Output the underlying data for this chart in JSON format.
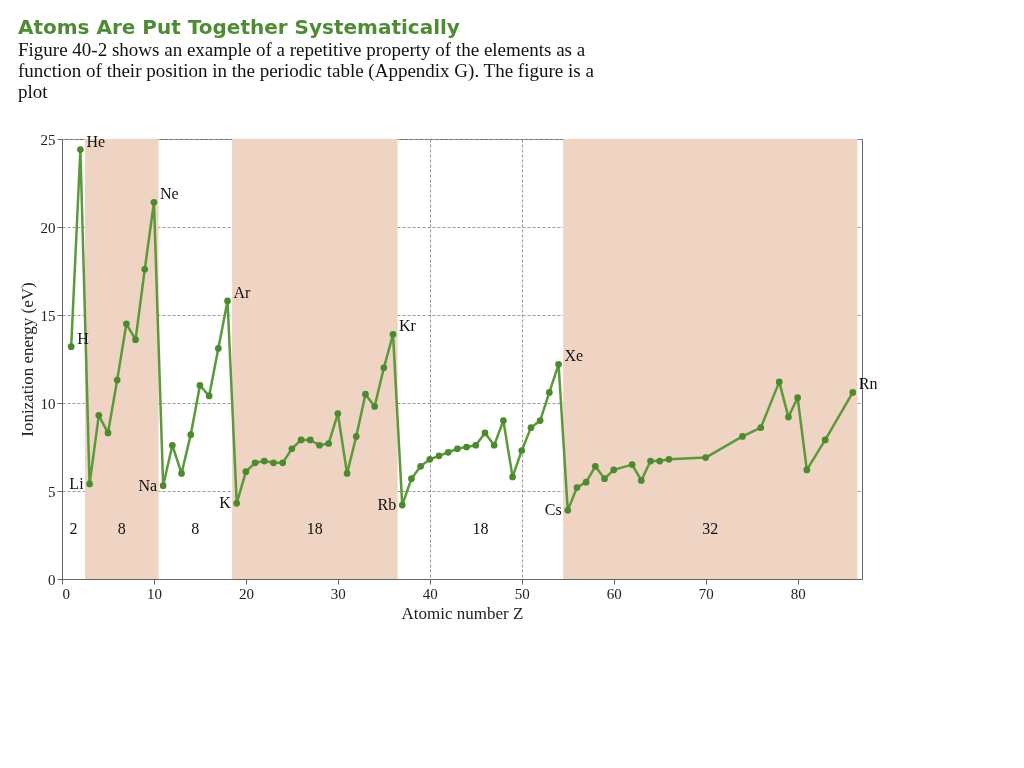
{
  "chart_data": {
    "type": "line",
    "title": "Atoms Are Put Together Systematically",
    "subtitle": "Figure 40-2 shows an example of a repetitive property of the elements as a function of their position in the periodic table (Appendix G). The figure is a plot",
    "xlabel": "Atomic number Z",
    "ylabel": "Ionization energy (eV)",
    "x": [
      1,
      2,
      3,
      4,
      5,
      6,
      7,
      8,
      9,
      10,
      11,
      12,
      13,
      14,
      15,
      16,
      17,
      18,
      19,
      20,
      21,
      22,
      23,
      24,
      25,
      26,
      27,
      28,
      29,
      30,
      31,
      32,
      33,
      34,
      35,
      36,
      37,
      38,
      39,
      40,
      41,
      42,
      43,
      44,
      45,
      46,
      47,
      48,
      49,
      50,
      51,
      52,
      53,
      54,
      55,
      56,
      57,
      58,
      59,
      60,
      62,
      63,
      64,
      65,
      66,
      70,
      74,
      76,
      78,
      79,
      80,
      81,
      83,
      86
    ],
    "series": [
      {
        "color": "#5b9a3a",
        "values": [
          13.2,
          24.4,
          5.4,
          9.3,
          8.3,
          11.3,
          14.5,
          13.6,
          17.6,
          21.4,
          5.3,
          7.6,
          6.0,
          8.2,
          11.0,
          10.4,
          13.1,
          15.8,
          4.3,
          6.1,
          6.6,
          6.7,
          6.6,
          6.6,
          7.4,
          7.9,
          7.9,
          7.6,
          7.7,
          9.4,
          6.0,
          8.1,
          10.5,
          9.8,
          12.0,
          13.9,
          4.2,
          5.7,
          6.4,
          6.8,
          7.0,
          7.2,
          7.4,
          7.5,
          7.6,
          8.3,
          7.6,
          9.0,
          5.8,
          7.3,
          8.6,
          9.0,
          10.6,
          12.2,
          3.9,
          5.2,
          5.5,
          6.4,
          5.7,
          6.2,
          6.5,
          5.6,
          6.7,
          6.7,
          6.8,
          6.9,
          8.1,
          8.6,
          11.2,
          9.2,
          10.3,
          6.2,
          7.9,
          10.6
        ]
      }
    ],
    "xlim": [
      0,
      87
    ],
    "xticks": [
      0,
      10,
      20,
      30,
      40,
      50,
      60,
      70,
      80
    ],
    "ylim": [
      0,
      25
    ],
    "yticks": [
      0,
      5,
      10,
      15,
      20,
      25
    ],
    "grid": true,
    "marker": "circle",
    "bands": [
      {
        "axis": "x",
        "from": 2.5,
        "to": 10.5,
        "color": "#efd3c3",
        "label": "8"
      },
      {
        "axis": "x",
        "from": 18.5,
        "to": 36.5,
        "color": "#efd3c3",
        "label": "18"
      },
      {
        "axis": "x",
        "from": 54.5,
        "to": 86.5,
        "color": "#efd3c3",
        "label": "32"
      }
    ],
    "annotations": [
      {
        "text": "H",
        "x": 1,
        "y": 13.2
      },
      {
        "text": "He",
        "x": 2,
        "y": 24.4
      },
      {
        "text": "Li",
        "x": 3,
        "y": 5.4
      },
      {
        "text": "Ne",
        "x": 10,
        "y": 21.4
      },
      {
        "text": "Na",
        "x": 11,
        "y": 5.3
      },
      {
        "text": "Ar",
        "x": 18,
        "y": 15.8
      },
      {
        "text": "K",
        "x": 19,
        "y": 4.3
      },
      {
        "text": "Kr",
        "x": 36,
        "y": 13.9
      },
      {
        "text": "Rb",
        "x": 37,
        "y": 4.2
      },
      {
        "text": "Xe",
        "x": 54,
        "y": 12.2
      },
      {
        "text": "Cs",
        "x": 55,
        "y": 3.9
      },
      {
        "text": "Rn",
        "x": 86,
        "y": 10.6
      },
      "2",
      "8",
      "18"
    ]
  }
}
